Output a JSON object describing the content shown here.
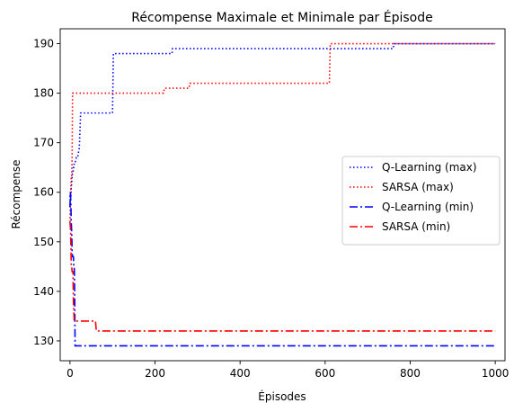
{
  "chart_data": {
    "type": "line",
    "title": "Récompense Maximale et Minimale par Épisode",
    "xlabel": "Épisodes",
    "ylabel": "Récompense",
    "xlim": [
      -23,
      1023
    ],
    "ylim": [
      126,
      193
    ],
    "xticks": [
      0,
      200,
      400,
      600,
      800,
      1000
    ],
    "yticks": [
      130,
      140,
      150,
      160,
      170,
      180,
      190
    ],
    "grid": false,
    "legend_position": "center-right",
    "series": [
      {
        "name": "Q-Learning (max)",
        "color": "#0000ff",
        "dash": "dotted",
        "x": [
          0,
          1,
          2,
          3,
          4,
          5,
          6,
          7,
          8,
          9,
          10,
          12,
          15,
          18,
          20,
          22,
          25,
          100,
          102,
          240,
          241,
          760,
          762,
          1000
        ],
        "y": [
          159,
          160,
          159,
          161,
          162,
          163,
          164,
          164,
          165,
          165,
          166,
          166,
          167,
          167,
          168,
          169,
          176,
          176,
          188,
          188,
          189,
          189,
          190,
          190
        ]
      },
      {
        "name": "SARSA (max)",
        "color": "#ff0000",
        "dash": "dotted",
        "x": [
          0,
          1,
          2,
          3,
          4,
          5,
          6,
          220,
          222,
          280,
          282,
          610,
          612,
          1000
        ],
        "y": [
          154,
          160,
          160,
          163,
          163,
          167,
          180,
          180,
          181,
          181,
          182,
          182,
          190,
          190
        ]
      },
      {
        "name": "Q-Learning (min)",
        "color": "#0000ff",
        "dash": "dashdot",
        "x": [
          0,
          1,
          2,
          3,
          4,
          5,
          6,
          7,
          8,
          9,
          10,
          11,
          12,
          1000
        ],
        "y": [
          157,
          160,
          158,
          154,
          152,
          148,
          147,
          147,
          147,
          145,
          145,
          140,
          129,
          129
        ]
      },
      {
        "name": "SARSA (min)",
        "color": "#ff0000",
        "dash": "dashdot",
        "x": [
          0,
          1,
          2,
          3,
          4,
          5,
          6,
          7,
          8,
          10,
          12,
          60,
          62,
          1000
        ],
        "y": [
          154,
          153,
          150,
          145,
          145,
          144,
          144,
          144,
          138,
          134,
          134,
          134,
          132,
          132
        ]
      }
    ]
  }
}
